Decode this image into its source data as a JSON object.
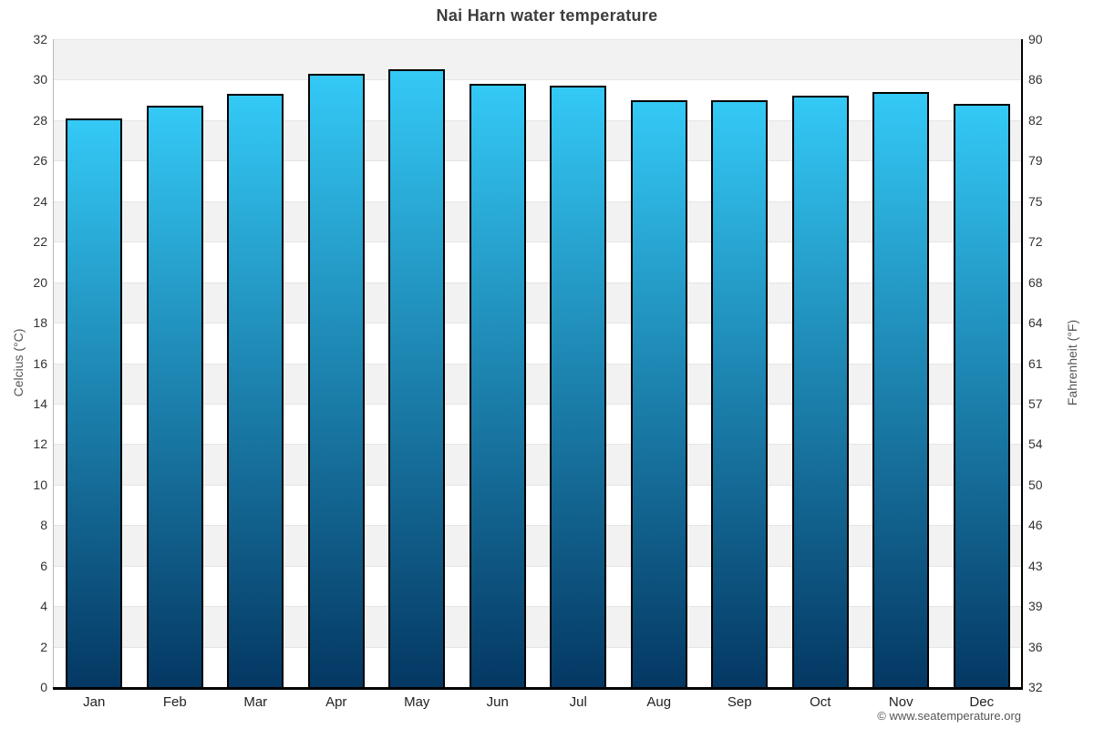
{
  "chart_data": {
    "type": "bar",
    "title": "Nai Harn water temperature",
    "categories": [
      "Jan",
      "Feb",
      "Mar",
      "Apr",
      "May",
      "Jun",
      "Jul",
      "Aug",
      "Sep",
      "Oct",
      "Nov",
      "Dec"
    ],
    "values": [
      28.1,
      28.7,
      29.3,
      30.3,
      30.5,
      29.8,
      29.7,
      29.0,
      29.0,
      29.2,
      29.4,
      28.8
    ],
    "ylabel_left": "Celcius (°C)",
    "ylabel_right": "Fahrenheit (°F)",
    "ylim": [
      0,
      32
    ],
    "celsius_ticks": [
      0,
      2,
      4,
      6,
      8,
      10,
      12,
      14,
      16,
      18,
      20,
      22,
      24,
      26,
      28,
      30,
      32
    ],
    "fahrenheit_tick_labels": [
      "32",
      "36",
      "39",
      "43",
      "46",
      "50",
      "54",
      "57",
      "61",
      "64",
      "68",
      "72",
      "75",
      "79",
      "82",
      "86",
      "90"
    ],
    "grid": "alternating horizontal bands every 2°C, gray band at top",
    "legend": "none"
  },
  "footer": {
    "credit": "© www.seatemperature.org"
  },
  "colors": {
    "bar_gradient_top": "#34c9f6",
    "bar_gradient_bottom": "#043863",
    "bar_border": "#000000",
    "band_gray": "#f2f2f2",
    "band_white": "#ffffff",
    "gridline": "#e5e5e5",
    "title_text": "#3d3d3d",
    "tick_text": "#333333",
    "axis_title_text": "#555555",
    "footer_text": "#555555",
    "left_axis_line": "#b8b8b8",
    "right_axis_line": "#000000",
    "bottom_axis_line": "#000000"
  }
}
